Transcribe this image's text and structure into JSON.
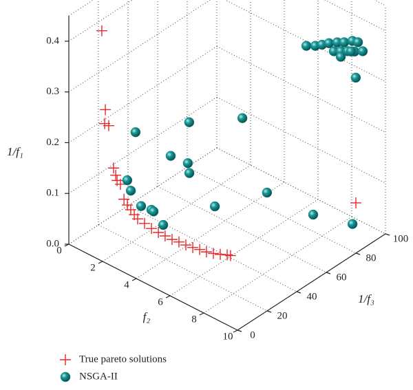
{
  "chart_data": {
    "type": "scatter3d",
    "x_label": "f₂",
    "y_label": "1/f₃",
    "z_label": "1/f₁",
    "xlim": [
      0,
      10
    ],
    "xticks": [
      0,
      2,
      4,
      6,
      8,
      10
    ],
    "ylim": [
      0,
      100
    ],
    "yticks": [
      0,
      20,
      40,
      60,
      80,
      100
    ],
    "zlim": [
      0,
      0.45
    ],
    "zticks": [
      {
        "value": 0,
        "label": "0.0"
      },
      0.1,
      0.2,
      0.3,
      0.4
    ],
    "grid": true,
    "series": [
      {
        "name": "True pareto solutions",
        "color": "#e8262a",
        "marker": "plus",
        "x": [
          2.65,
          2.78,
          2.86,
          3.06,
          3.27,
          3.47,
          3.67,
          3.88,
          4.08,
          4.49,
          4.9,
          5.31,
          5.71,
          6.12,
          6.53,
          6.94,
          7.35,
          7.76,
          8.16,
          8.57,
          8.98,
          9.39,
          9.59,
          0.2,
          0.41,
          0.37,
          0.61,
          10
        ],
        "y": [
          0,
          0,
          0,
          0,
          0,
          0,
          0,
          0,
          0,
          0,
          0,
          0,
          0,
          0,
          0,
          0,
          0,
          0,
          0,
          0,
          0,
          0,
          0,
          20,
          20,
          20,
          20,
          80
        ],
        "z": [
          0.195,
          0.183,
          0.174,
          0.17,
          0.144,
          0.136,
          0.13,
          0.124,
          0.119,
          0.117,
          0.114,
          0.113,
          0.113,
          0.113,
          0.115,
          0.116,
          0.118,
          0.121,
          0.123,
          0.127,
          0.132,
          0.138,
          0.14,
          0.386,
          0.234,
          0.206,
          0.206,
          0.099
        ]
      },
      {
        "name": "NSGA-II",
        "color": "#138a8a",
        "marker": "sphere",
        "x": [
          5.31,
          5.84,
          6.24,
          6.65,
          7.14,
          7.55,
          8.04,
          8.37,
          6.94,
          7.35,
          7.76,
          8.16,
          8.65,
          7.35,
          7.96,
          8.24,
          2.2,
          2.75,
          3.27,
          2.53,
          2.67,
          2.76,
          1.71,
          1.92,
          2.53,
          3.14,
          3.27,
          3.84,
          4.27,
          4.73,
          7.47,
          9.8
        ],
        "y": [
          100,
          100,
          100,
          100,
          100,
          100,
          100,
          100,
          100,
          100,
          100,
          100,
          100,
          100,
          100,
          100,
          20,
          50,
          80,
          40,
          50,
          50,
          20,
          20,
          20,
          20,
          20,
          20,
          50,
          80,
          80,
          80
        ],
        "z": [
          0.291,
          0.3,
          0.309,
          0.319,
          0.329,
          0.336,
          0.347,
          0.35,
          0.308,
          0.315,
          0.322,
          0.328,
          0.337,
          0.304,
          0.325,
          0.278,
          0.22,
          0.192,
          0.152,
          0.141,
          0.11,
          0.092,
          0.117,
          0.1,
          0.08,
          0.083,
          0.082,
          0.065,
          0.052,
          0.03,
          0.033,
          0.054
        ]
      }
    ]
  }
}
